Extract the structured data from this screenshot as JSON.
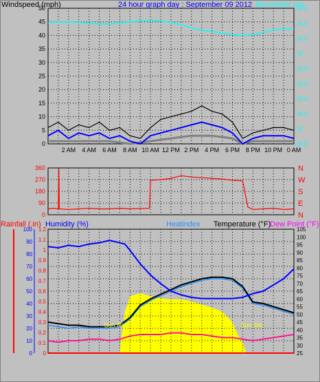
{
  "chart_data": [
    {
      "type": "line",
      "panel": "wind-barometer",
      "title": "24 hour graph day : September 09 2012",
      "ylabel_left": "Windspeed (mph)",
      "ylabel_right": "Barometer (in)",
      "ylim_left": [
        0,
        50
      ],
      "ylim_right": [
        28.8,
        30.6
      ],
      "left_ticks": [
        "0",
        "5",
        "10",
        "15",
        "20",
        "25",
        "30",
        "35",
        "40",
        "45",
        "50"
      ],
      "right_ticks": [
        "28.8",
        "29",
        "29.2",
        "29.4",
        "29.6",
        "29.8",
        "30",
        "30.2",
        "30.4",
        "30.6"
      ],
      "x_ticks": [
        "2 AM",
        "4 AM",
        "6 AM",
        "8 AM",
        "10 AM",
        "12 PM",
        "2 PM",
        "4 PM",
        "6 PM",
        "8 PM",
        "10 PM",
        "0 AM"
      ],
      "x_hours": [
        0,
        24
      ],
      "grid": true,
      "colors": {
        "gust": "#000000",
        "wind": "#0000ff",
        "avg": "#808080",
        "barometer": "#00ffff",
        "title": "#0000ff"
      },
      "series": [
        {
          "key": "barometer",
          "x": [
            0,
            2,
            4,
            6,
            8,
            10,
            11,
            12,
            13,
            14,
            15,
            16,
            17,
            18,
            19,
            20,
            21,
            22,
            23,
            24
          ],
          "values": [
            30.41,
            30.42,
            30.4,
            30.39,
            30.42,
            30.44,
            30.43,
            30.41,
            30.38,
            30.34,
            30.31,
            30.29,
            30.27,
            30.25,
            30.24,
            30.25,
            30.28,
            30.31,
            30.33,
            30.33
          ]
        },
        {
          "key": "gust",
          "x": [
            0,
            1,
            2,
            3,
            4,
            5,
            6,
            7,
            8,
            9,
            10,
            11,
            12,
            13,
            14,
            15,
            16,
            17,
            18,
            19,
            20,
            21,
            22,
            23,
            24
          ],
          "values": [
            6,
            8,
            5,
            7,
            6,
            8,
            5,
            6,
            3,
            2,
            6,
            9,
            10,
            11,
            12,
            14,
            12,
            11,
            8,
            2,
            4,
            5,
            6,
            6,
            5
          ]
        },
        {
          "key": "wind",
          "x": [
            0,
            1,
            2,
            3,
            4,
            5,
            6,
            7,
            8,
            9,
            10,
            11,
            12,
            13,
            14,
            15,
            16,
            17,
            18,
            19,
            20,
            21,
            22,
            23,
            24
          ],
          "values": [
            3,
            5,
            2,
            4,
            3,
            4,
            2,
            3,
            1,
            0,
            3,
            4,
            5,
            6,
            7,
            8,
            7,
            6,
            4,
            0,
            2,
            3,
            3,
            3,
            2
          ]
        },
        {
          "key": "avg",
          "x": [
            0,
            2,
            4,
            6,
            8,
            10,
            12,
            14,
            16,
            18,
            19,
            20,
            22,
            24
          ],
          "values": [
            1,
            1,
            1,
            1,
            0,
            1,
            2,
            3,
            3,
            2,
            0,
            1,
            1,
            1
          ]
        }
      ]
    },
    {
      "type": "scatter",
      "panel": "wind-direction",
      "ylim": [
        0,
        360
      ],
      "left_ticks": [
        "0",
        "90",
        "180",
        "270",
        "360"
      ],
      "right_ticks": [
        "N",
        "E",
        "S",
        "W",
        "N"
      ],
      "colors": {
        "direction": "#ff0000",
        "axis": "#ff0000"
      },
      "series": [
        {
          "key": "direction",
          "x": [
            0,
            0.5,
            1,
            1.05,
            1.1,
            2,
            3,
            4,
            5,
            6,
            7,
            8,
            9.9,
            10,
            11,
            12,
            13,
            14,
            15,
            16,
            17,
            18,
            19,
            19.5,
            20,
            21,
            22,
            23,
            24
          ],
          "values": [
            45,
            50,
            45,
            355,
            45,
            40,
            45,
            50,
            45,
            45,
            50,
            45,
            50,
            265,
            270,
            280,
            300,
            290,
            285,
            280,
            275,
            265,
            260,
            60,
            40,
            45,
            50,
            40,
            45
          ]
        }
      ]
    },
    {
      "type": "line",
      "panel": "temperature-humidity",
      "labels": {
        "rainfall": "Rainfall (.in)",
        "humidity": "Humidity (%)",
        "heatindex": "Heatindex",
        "temperature": "Temperature (°F)",
        "dewpoint": "Dew Point (°F)"
      },
      "ylim_humidity": [
        0,
        100
      ],
      "ylim_rainfall": [
        0,
        1.2
      ],
      "ylim_temp": [
        25,
        105
      ],
      "humidity_ticks": [
        "0",
        "10",
        "20",
        "30",
        "40",
        "50",
        "60",
        "70",
        "80",
        "90",
        "100"
      ],
      "rain_ticks": [
        "0",
        "0.1",
        "0.2",
        "0.3",
        "0.4",
        "0.5",
        "0.6",
        "0.7",
        "0.8",
        "0.9",
        "1",
        "1.1",
        "1.2"
      ],
      "temp_ticks": [
        "25",
        "30",
        "35",
        "40",
        "45",
        "50",
        "55",
        "60",
        "65",
        "70",
        "75",
        "80",
        "85",
        "90",
        "95",
        "100",
        "105"
      ],
      "annotations": {
        "sunrise": "Sun Rise",
        "sunset": "Sun Set"
      },
      "sun_hours": {
        "rise": 6.95,
        "set": 19.35
      },
      "colors": {
        "humidity": "#0000ff",
        "temperature": "#000000",
        "heatindex": "#1e90ff",
        "dewpoint": "#ff1493",
        "solar": "#ffff00",
        "rainfall": "#ff0000",
        "rainfall_label": "#ff0000",
        "humidity_label": "#0000ff",
        "heatindex_label": "#1e90ff",
        "dewpoint_label": "#ff00ff"
      },
      "series": [
        {
          "key": "humidity",
          "x": [
            0,
            1,
            2,
            3,
            4,
            5,
            6,
            6.5,
            7,
            7.5,
            8,
            9,
            10,
            11,
            12,
            13,
            14,
            15,
            16,
            17,
            18,
            19,
            20,
            21,
            22,
            23,
            24
          ],
          "values": [
            86,
            85,
            87,
            86,
            88,
            89,
            91,
            90,
            89,
            88,
            83,
            72,
            63,
            56,
            50,
            47,
            45,
            44,
            44,
            44,
            44,
            45,
            48,
            50,
            55,
            60,
            68
          ]
        },
        {
          "key": "temperature",
          "x": [
            0,
            1,
            2,
            3,
            4,
            5,
            6,
            7,
            8,
            9,
            10,
            11,
            12,
            13,
            14,
            15,
            16,
            17,
            18,
            19,
            20,
            21,
            22,
            23,
            24
          ],
          "values": [
            45,
            44,
            43,
            43,
            42,
            42,
            42,
            43,
            48,
            56,
            60,
            63,
            66,
            69,
            71,
            73,
            74,
            74,
            73,
            68,
            58,
            57,
            55,
            53,
            51
          ]
        },
        {
          "key": "heatindex",
          "x": [
            0,
            1,
            2,
            3,
            4,
            5,
            6,
            7,
            8,
            9,
            10,
            11,
            12,
            13,
            14,
            15,
            16,
            17,
            18,
            19,
            20,
            21,
            22,
            23,
            24
          ],
          "values": [
            43,
            42,
            41,
            42,
            41,
            41,
            41,
            42,
            47,
            55,
            59,
            62,
            65,
            68,
            70,
            72,
            73,
            73,
            72,
            67,
            57,
            56,
            54,
            52,
            50
          ]
        },
        {
          "key": "dewpoint",
          "x": [
            0,
            1,
            2,
            3,
            4,
            5,
            6,
            7,
            8,
            9,
            10,
            11,
            12,
            13,
            14,
            15,
            16,
            17,
            18,
            19,
            20,
            21,
            22,
            23,
            24
          ],
          "values": [
            33,
            32,
            33,
            33,
            34,
            34,
            33,
            34,
            36,
            37,
            37,
            37,
            38,
            38,
            37,
            37,
            36,
            35,
            35,
            34,
            33,
            34,
            35,
            36,
            37
          ]
        },
        {
          "key": "solar",
          "x": [
            6.95,
            7.5,
            8,
            9,
            10,
            11,
            12,
            13,
            14,
            15,
            16,
            17,
            18,
            18.5,
            19,
            19.35
          ],
          "values": [
            0,
            0.4,
            0.55,
            0.58,
            0.55,
            0.53,
            0.52,
            0.52,
            0.5,
            0.47,
            0.44,
            0.4,
            0.3,
            0.18,
            0.1,
            0
          ]
        },
        {
          "key": "rainfall",
          "x": [
            0,
            24
          ],
          "values": [
            0,
            0
          ]
        }
      ]
    }
  ]
}
